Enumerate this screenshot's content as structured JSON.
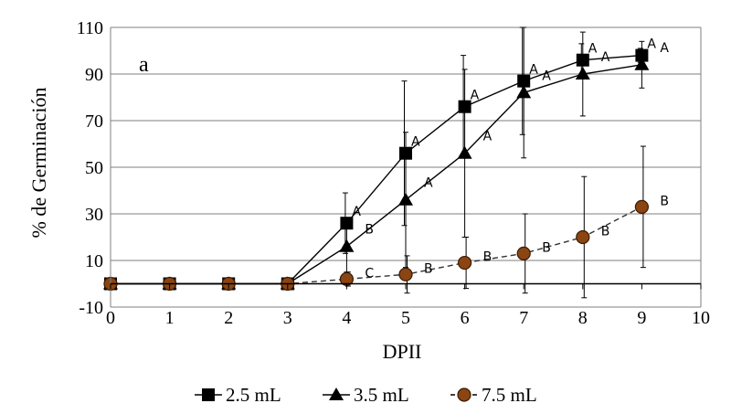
{
  "chart_data": {
    "type": "line",
    "panel_label": "a",
    "xlabel": "DPII",
    "ylabel": "% de Germinación",
    "xlim": [
      0,
      10
    ],
    "ylim": [
      -10,
      110
    ],
    "x_ticks": [
      "0",
      "1",
      "2",
      "3",
      "4",
      "5",
      "6",
      "7",
      "8",
      "9",
      "10"
    ],
    "y_ticks": [
      "-10",
      "10",
      "30",
      "50",
      "70",
      "90",
      "110"
    ],
    "grid": "horizontal",
    "legend_position": "bottom",
    "x": [
      0,
      1,
      2,
      3,
      4,
      5,
      6,
      7,
      8,
      9
    ],
    "series": [
      {
        "name": "2.5 mL",
        "marker": "square",
        "line": "solid",
        "color": "#000000",
        "values": [
          0,
          0,
          0,
          0,
          26,
          56,
          76,
          87,
          96,
          98
        ],
        "error_upper": [
          null,
          null,
          null,
          null,
          39,
          87,
          98,
          110,
          103,
          101
        ],
        "error_lower": [
          null,
          null,
          null,
          null,
          13,
          25,
          54,
          64,
          89,
          95
        ],
        "letters": [
          null,
          null,
          null,
          null,
          "A",
          "A",
          "A",
          "A",
          "A",
          "A"
        ]
      },
      {
        "name": "3.5 mL",
        "marker": "triangle",
        "line": "solid",
        "color": "#000000",
        "values": [
          0,
          0,
          0,
          0,
          16,
          36,
          56,
          82,
          90,
          94
        ],
        "error_upper": [
          null,
          null,
          null,
          null,
          27,
          65,
          92,
          110,
          108,
          104
        ],
        "error_lower": [
          null,
          null,
          null,
          null,
          5,
          7,
          20,
          54,
          72,
          84
        ],
        "letters": [
          null,
          null,
          null,
          null,
          "B",
          "A",
          "A",
          "A",
          "A",
          "A"
        ]
      },
      {
        "name": "7.5 mL",
        "marker": "circle",
        "line": "dashed",
        "color": "#8B4513",
        "values": [
          0,
          0,
          0,
          0,
          2,
          4,
          9,
          13,
          20,
          33
        ],
        "error_upper": [
          null,
          null,
          null,
          null,
          5,
          12,
          20,
          30,
          46,
          59
        ],
        "error_lower": [
          null,
          null,
          null,
          null,
          -1,
          -4,
          -2,
          -4,
          -6,
          7
        ],
        "letters": [
          null,
          null,
          null,
          null,
          "C",
          "B",
          "B",
          "B",
          "B",
          "B"
        ]
      }
    ]
  }
}
